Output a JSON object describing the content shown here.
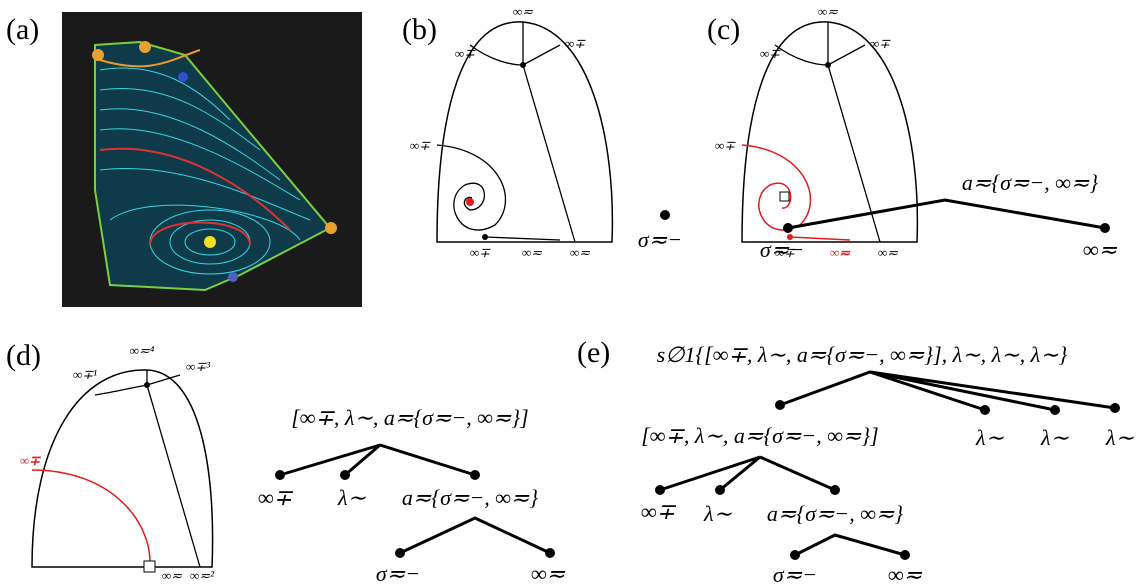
{
  "panels": {
    "a": {
      "label": "(a)"
    },
    "b": {
      "label": "(b)",
      "top": "∞≂",
      "top_left": "∞∓",
      "top_right": "∞∓",
      "left": "∞∓",
      "bottom_left": "∞∓",
      "bottom_mid": "∞≂",
      "bottom_right": "∞≂",
      "point": "σ≂−"
    },
    "c": {
      "label": "(c)",
      "top": "∞≂",
      "top_left": "∞∓",
      "top_right": "∞∓",
      "left": "∞∓",
      "bottom_left": "∞∓",
      "bottom_red": "∞≂",
      "bottom_right": "∞≂",
      "tree": {
        "root": "a≂{σ≂−, ∞≂}",
        "leaves": [
          "σ≂−",
          "∞≂"
        ]
      }
    },
    "d": {
      "label": "(d)",
      "top": "∞≂⁴",
      "top_left": "∞∓¹",
      "top_right": "∞∓³",
      "left_red": "∞∓",
      "bottom_mid": "∞≂",
      "bottom_right": "∞≂²",
      "tree": {
        "root": "[∞∓, λ∼, a≂{σ≂−, ∞≂}]",
        "children": [
          "∞∓",
          "λ∼",
          "a≂{σ≂−, ∞≂}"
        ],
        "grandchildren": [
          "σ≂−",
          "∞≂"
        ]
      }
    },
    "e": {
      "label": "(e)",
      "tree": {
        "root": "s∅1{[∞∓, λ∼, a≂{σ≂−, ∞≂}], λ∼, λ∼, λ∼}",
        "children": [
          "[∞∓, λ∼, a≂{σ≂−, ∞≂}]",
          "λ∼",
          "λ∼",
          "λ∼"
        ],
        "grandchildren": [
          "∞∓",
          "λ∼",
          "a≂{σ≂−, ∞≂}"
        ],
        "great_grandchildren": [
          "σ≂−",
          "∞≂"
        ]
      }
    }
  }
}
